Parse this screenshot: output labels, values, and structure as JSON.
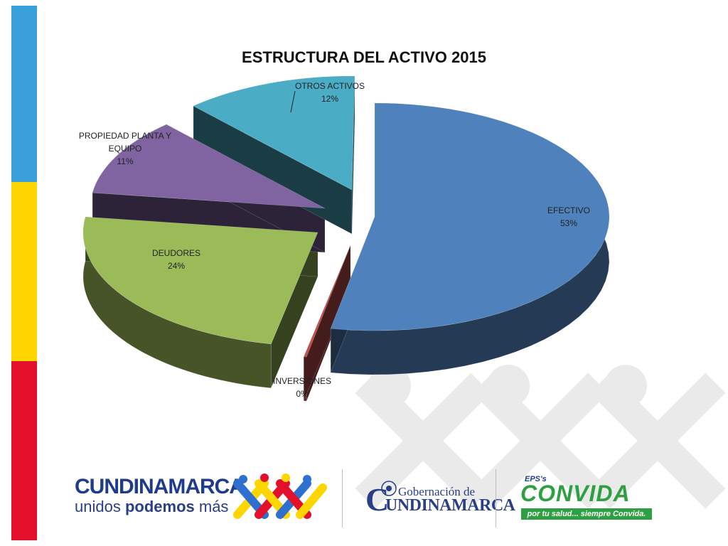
{
  "colors": {
    "stripe_blue": "#3aa0dc",
    "stripe_yellow": "#fdd600",
    "stripe_red": "#e2102a",
    "efectivo": "#4f81bd",
    "inversiones": "#c0504d",
    "deudores": "#9bbb59",
    "propiedad": "#8064a2",
    "otros": "#4bacc6"
  },
  "chart_data": {
    "type": "pie",
    "title": "ESTRUCTURA DEL ACTIVO 2015",
    "style": "3d-exploded",
    "slices": [
      {
        "name": "EFECTIVO",
        "value": 53,
        "label": "53%",
        "color": "#4f81bd"
      },
      {
        "name": "INVERSIONES",
        "value": 0,
        "label": "0%",
        "color": "#c0504d"
      },
      {
        "name": "DEUDORES",
        "value": 24,
        "label": "24%",
        "color": "#9bbb59"
      },
      {
        "name": "PROPIEDAD PLANTA Y EQUIPO",
        "value": 11,
        "label": "11%",
        "color": "#8064a2"
      },
      {
        "name": "OTROS ACTIVOS",
        "value": 12,
        "label": "12%",
        "color": "#4bacc6"
      }
    ]
  },
  "labels": {
    "efectivo_name": "EFECTIVO",
    "efectivo_pct": "53%",
    "inversiones_name": "INVERSIONES",
    "inversiones_pct": "0%",
    "deudores_name": "DEUDORES",
    "deudores_pct": "24%",
    "propiedad_name_1": "PROPIEDAD PLANTA Y",
    "propiedad_name_2": "EQUIPO",
    "propiedad_pct": "11%",
    "otros_name": "OTROS ACTIVOS",
    "otros_pct": "12%"
  },
  "footer": {
    "brand1_title": "CUNDINAMARCA",
    "brand1_sub_a": "unidos ",
    "brand1_sub_b": "podemos",
    "brand1_sub_c": " más",
    "gob_line1": "Gobernación de",
    "gob_line2": "UNDINAMARCA",
    "gob_initial": "C",
    "conv_eps": "EPS's",
    "conv_name": "CONVIDA",
    "conv_tagline": "por tu salud... siempre Convida."
  }
}
